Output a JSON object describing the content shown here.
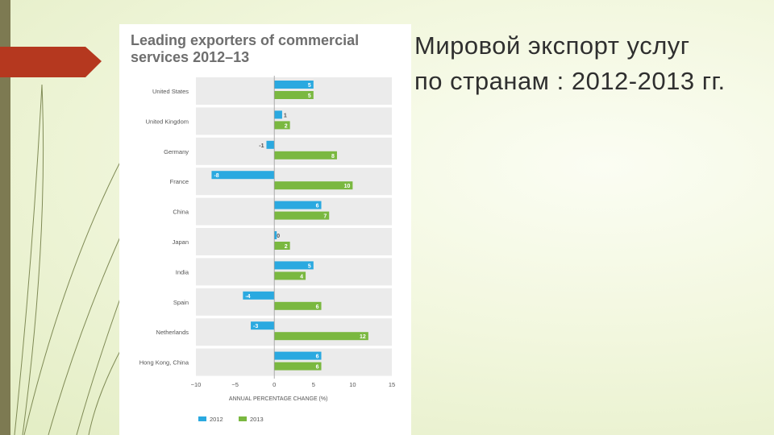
{
  "slide": {
    "title_line1": "Мировой экспорт услуг",
    "title_line2": "по странам : 2012-2013 гг."
  },
  "colors": {
    "series_2012": "#2aa9e0",
    "series_2013": "#7ab840",
    "accent_arrow": "#b5381f"
  },
  "chart_data": {
    "type": "bar",
    "orientation": "horizontal",
    "title_line1": "Leading exporters of commercial",
    "title_line2": "services 2012–13",
    "categories": [
      "United States",
      "United Kingdom",
      "Germany",
      "France",
      "China",
      "Japan",
      "India",
      "Spain",
      "Netherlands",
      "Hong Kong, China"
    ],
    "series": [
      {
        "name": "2012",
        "values": [
          5,
          1,
          -1,
          -8,
          6,
          0,
          5,
          -4,
          -3,
          6
        ]
      },
      {
        "name": "2013",
        "values": [
          5,
          2,
          8,
          10,
          7,
          2,
          4,
          6,
          12,
          6
        ]
      }
    ],
    "xlabel": "ANNUAL PERCENTAGE CHANGE (%)",
    "xlim": [
      -10,
      15
    ],
    "xticks": [
      -10,
      -5,
      0,
      5,
      10,
      15
    ],
    "legend_position": "bottom-left"
  }
}
